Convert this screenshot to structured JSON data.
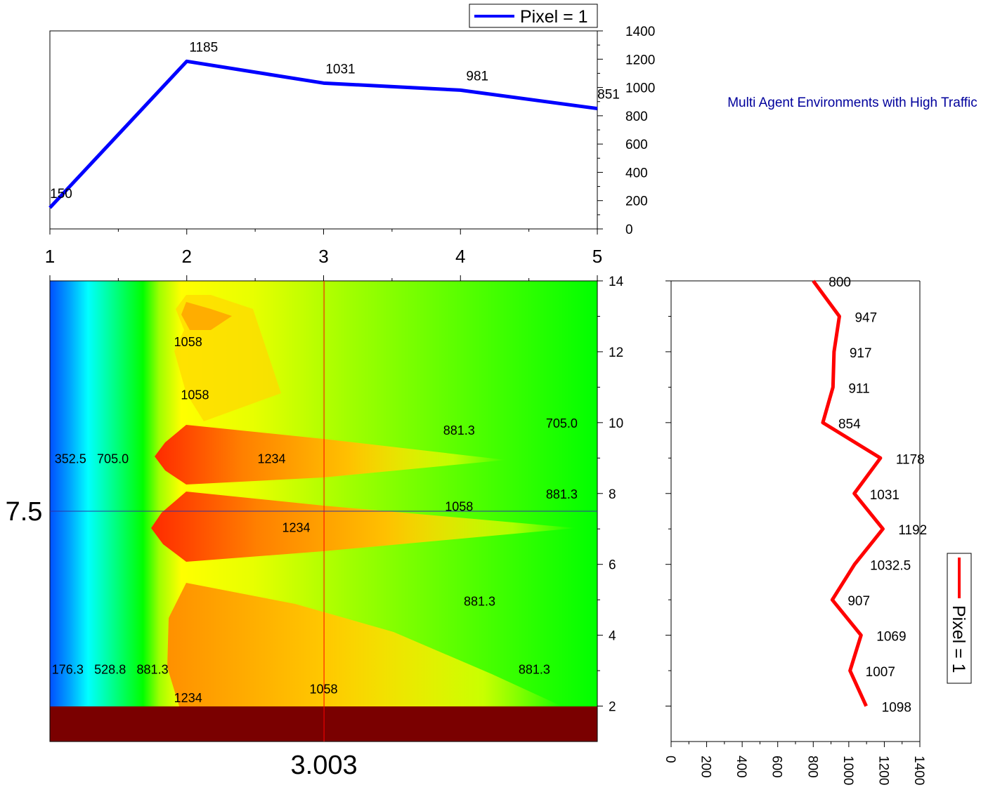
{
  "title": "Multi Agent Environments with High Traffic",
  "colors": {
    "title": "#00009c",
    "top_series": "#0000ff",
    "right_series": "#ff0000",
    "bottom_band": "#7a0000",
    "crosshair_v": "#ff0000",
    "crosshair_h": "#3030a0"
  },
  "chart_data": [
    {
      "name": "top-profile",
      "type": "line",
      "x": [
        1,
        2,
        3,
        4,
        5
      ],
      "y": [
        150,
        1185,
        1031,
        981,
        851
      ],
      "data_labels": [
        "150",
        "1185",
        "1031",
        "981",
        "851"
      ],
      "legend": "Pixel = 1",
      "xlim": [
        1,
        5
      ],
      "ylim": [
        0,
        1400
      ],
      "x_ticks": [
        "1",
        "2",
        "3",
        "4",
        "5"
      ],
      "y_ticks": [
        "0",
        "200",
        "400",
        "600",
        "800",
        "1000",
        "1200",
        "1400"
      ],
      "y_axis_side": "right",
      "legend_position": "top-right"
    },
    {
      "name": "contour-map",
      "type": "heatmap",
      "xlim": [
        1,
        5
      ],
      "ylim": [
        1,
        14
      ],
      "y_ticks": [
        "2",
        "4",
        "6",
        "8",
        "10",
        "12",
        "14"
      ],
      "crosshair_x": 3.003,
      "crosshair_y": 7.5,
      "crosshair_x_label": "3.003",
      "crosshair_y_label": "7.5",
      "contour_labels": [
        {
          "text": "1058",
          "x": 2.01,
          "y": 12.3
        },
        {
          "text": "1058",
          "x": 2.06,
          "y": 10.8
        },
        {
          "text": "881.3",
          "x": 3.99,
          "y": 9.8
        },
        {
          "text": "705.0",
          "x": 4.74,
          "y": 10.0
        },
        {
          "text": "352.5",
          "x": 1.15,
          "y": 9.0
        },
        {
          "text": "705.0",
          "x": 1.46,
          "y": 9.0
        },
        {
          "text": "1234",
          "x": 2.62,
          "y": 9.0
        },
        {
          "text": "881.3",
          "x": 4.74,
          "y": 8.0
        },
        {
          "text": "1058",
          "x": 3.99,
          "y": 7.65
        },
        {
          "text": "1234",
          "x": 2.8,
          "y": 7.05
        },
        {
          "text": "881.3",
          "x": 4.14,
          "y": 4.97
        },
        {
          "text": "176.3",
          "x": 1.13,
          "y": 3.05
        },
        {
          "text": "528.8",
          "x": 1.44,
          "y": 3.05
        },
        {
          "text": "881.3",
          "x": 1.75,
          "y": 3.05
        },
        {
          "text": "881.3",
          "x": 4.54,
          "y": 3.05
        },
        {
          "text": "1058",
          "x": 3.0,
          "y": 2.5
        },
        {
          "text": "1234",
          "x": 2.01,
          "y": 2.25
        }
      ],
      "bottom_band": [
        1,
        2
      ]
    },
    {
      "name": "right-profile",
      "type": "line",
      "orientation": "vertical",
      "y": [
        14,
        13,
        12,
        11,
        10,
        9,
        8,
        7,
        6,
        5,
        4,
        3,
        2
      ],
      "x": [
        800,
        947,
        917,
        911,
        854,
        1178,
        1031,
        1192,
        1032.5,
        907,
        1069,
        1007,
        1098
      ],
      "data_labels": [
        "800",
        "947",
        "917",
        "911",
        "854",
        "1178",
        "1031",
        "1192",
        "1032.5",
        "907",
        "1069",
        "1007",
        "1098"
      ],
      "legend": "Pixel = 1",
      "xlim": [
        0,
        1400
      ],
      "ylim": [
        1,
        14
      ],
      "x_ticks": [
        "0",
        "200",
        "400",
        "600",
        "800",
        "1000",
        "1200",
        "1400"
      ],
      "legend_position": "right"
    }
  ]
}
